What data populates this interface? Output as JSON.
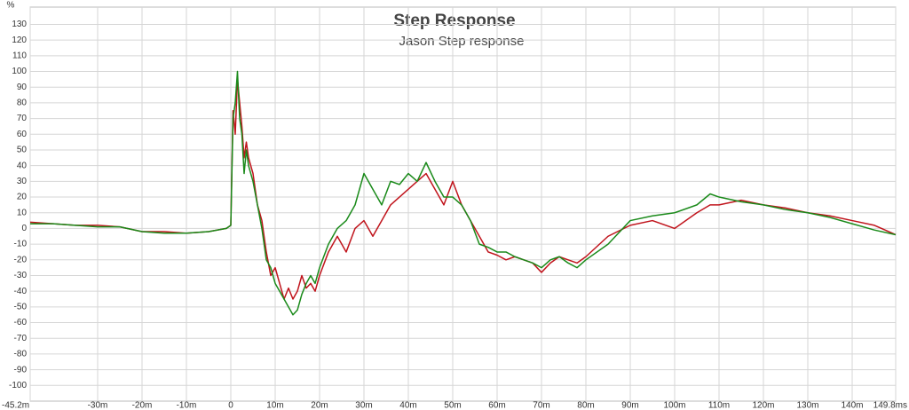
{
  "chart_data": {
    "type": "line",
    "title": "Step Response",
    "subtitle": "Jason Step response",
    "y_label": "%",
    "xlim": [
      -45.2,
      149.8
    ],
    "ylim": [
      -110,
      141
    ],
    "grid": true,
    "xticks": [
      {
        "value": -45.2,
        "label": "-45.2m"
      },
      {
        "value": -30,
        "label": "-30m"
      },
      {
        "value": -20,
        "label": "-20m"
      },
      {
        "value": -10,
        "label": "-10m"
      },
      0,
      {
        "value": 10,
        "label": "10m"
      },
      {
        "value": 20,
        "label": "20m"
      },
      {
        "value": 30,
        "label": "30m"
      },
      {
        "value": 40,
        "label": "40m"
      },
      {
        "value": 50,
        "label": "50m"
      },
      {
        "value": 60,
        "label": "60m"
      },
      {
        "value": 70,
        "label": "70m"
      },
      {
        "value": 80,
        "label": "80m"
      },
      {
        "value": 90,
        "label": "90m"
      },
      {
        "value": 100,
        "label": "100m"
      },
      {
        "value": 110,
        "label": "110m"
      },
      {
        "value": 120,
        "label": "120m"
      },
      {
        "value": 130,
        "label": "130m"
      },
      {
        "value": 140,
        "label": "140m"
      },
      {
        "value": 149.8,
        "label": "149.8ms"
      }
    ],
    "yticks": [
      -100,
      -90,
      -80,
      -70,
      -60,
      -50,
      -40,
      -30,
      -20,
      -10,
      0,
      10,
      20,
      30,
      40,
      50,
      60,
      70,
      80,
      90,
      100,
      110,
      120,
      130
    ],
    "x": [
      -45.2,
      -40,
      -35,
      -30,
      -25,
      -20,
      -15,
      -10,
      -5,
      -1,
      0,
      0.5,
      1,
      1.5,
      2,
      2.5,
      3,
      3.5,
      4,
      5,
      6,
      7,
      8,
      9,
      10,
      11,
      12,
      13,
      14,
      15,
      16,
      17,
      18,
      19,
      20,
      22,
      24,
      26,
      28,
      30,
      32,
      34,
      36,
      38,
      40,
      42,
      44,
      46,
      48,
      50,
      52,
      54,
      56,
      58,
      60,
      62,
      64,
      66,
      68,
      70,
      72,
      74,
      76,
      78,
      80,
      85,
      90,
      95,
      100,
      105,
      108,
      110,
      115,
      120,
      125,
      130,
      135,
      140,
      145,
      149.8
    ],
    "series": [
      {
        "color": "#c0141c",
        "values": [
          4,
          3,
          2,
          2,
          1,
          -2,
          -2,
          -3,
          -2,
          0,
          2,
          75,
          60,
          95,
          80,
          65,
          45,
          55,
          45,
          35,
          15,
          5,
          -15,
          -30,
          -25,
          -35,
          -45,
          -38,
          -45,
          -40,
          -30,
          -38,
          -35,
          -40,
          -30,
          -15,
          -5,
          -15,
          0,
          5,
          -5,
          5,
          15,
          20,
          25,
          30,
          35,
          25,
          15,
          30,
          15,
          5,
          -5,
          -15,
          -17,
          -20,
          -18,
          -20,
          -22,
          -28,
          -22,
          -18,
          -20,
          -22,
          -18,
          -5,
          2,
          5,
          0,
          10,
          15,
          15,
          18,
          15,
          13,
          10,
          8,
          5,
          2,
          -4
        ]
      },
      {
        "color": "#1a8a1a",
        "values": [
          3,
          3,
          2,
          1,
          1,
          -2,
          -3,
          -3,
          -2,
          0,
          2,
          70,
          80,
          100,
          70,
          60,
          35,
          50,
          40,
          30,
          15,
          0,
          -20,
          -25,
          -35,
          -40,
          -45,
          -50,
          -55,
          -52,
          -42,
          -35,
          -30,
          -35,
          -25,
          -10,
          0,
          5,
          15,
          35,
          25,
          15,
          30,
          28,
          35,
          30,
          42,
          30,
          20,
          20,
          15,
          5,
          -10,
          -12,
          -15,
          -15,
          -18,
          -20,
          -22,
          -25,
          -20,
          -18,
          -22,
          -25,
          -20,
          -10,
          5,
          8,
          10,
          15,
          22,
          20,
          17,
          15,
          12,
          10,
          7,
          3,
          -1,
          -4
        ]
      }
    ]
  }
}
